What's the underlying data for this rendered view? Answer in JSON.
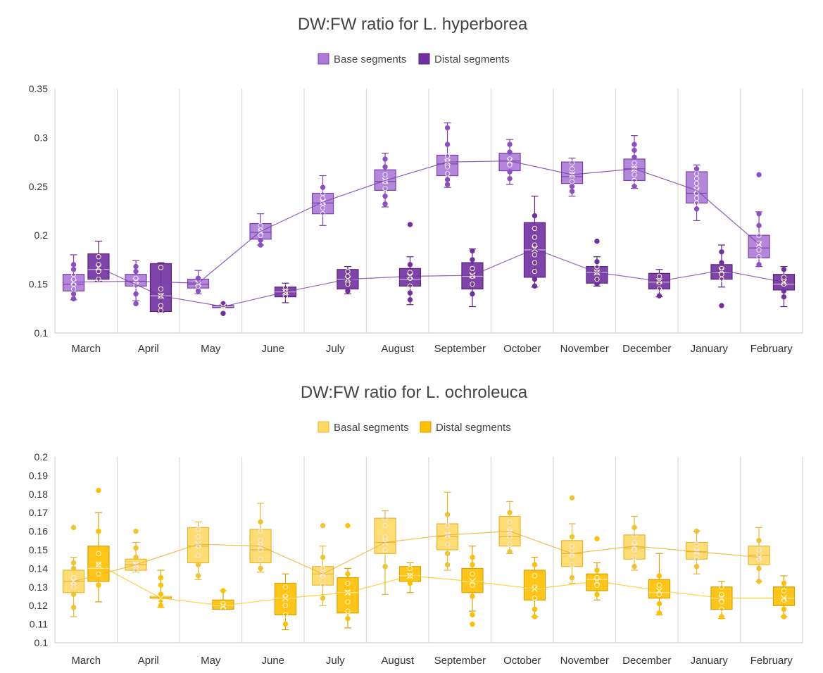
{
  "chart_data": [
    {
      "type": "boxplot",
      "title": "DW:FW ratio for L. hyperborea",
      "legend": "top-center",
      "categories": [
        "March",
        "April",
        "May",
        "June",
        "July",
        "August",
        "September",
        "October",
        "November",
        "December",
        "January",
        "February"
      ],
      "ylim": [
        0.1,
        0.35
      ],
      "yticks": [
        "0.1",
        "0.15",
        "0.2",
        "0.25",
        "0.3",
        "0.35"
      ],
      "yticks_values": [
        0.1,
        0.15,
        0.2,
        0.25,
        0.3,
        0.35
      ],
      "series": [
        {
          "name": "Base segments",
          "fill": "#ac7ad6",
          "stroke": "#7a3fb0",
          "marker": "#8c4fc2",
          "boxes": [
            {
              "min": 0.134,
              "q1": 0.143,
              "median": 0.15,
              "q3": 0.16,
              "max": 0.18,
              "mean": 0.152,
              "points": [
                0.135,
                0.14,
                0.145,
                0.15,
                0.155,
                0.16,
                0.165,
                0.17
              ]
            },
            {
              "min": 0.133,
              "q1": 0.148,
              "median": 0.153,
              "q3": 0.16,
              "max": 0.174,
              "mean": 0.153,
              "points": [
                0.13,
                0.14,
                0.148,
                0.152,
                0.156,
                0.163,
                0.168
              ]
            },
            {
              "min": 0.14,
              "q1": 0.146,
              "median": 0.15,
              "q3": 0.155,
              "max": 0.164,
              "mean": 0.151,
              "points": [
                0.143,
                0.148,
                0.152,
                0.156
              ]
            },
            {
              "min": 0.19,
              "q1": 0.196,
              "median": 0.203,
              "q3": 0.212,
              "max": 0.222,
              "mean": 0.204,
              "points": [
                0.19,
                0.195,
                0.2,
                0.205,
                0.21
              ]
            },
            {
              "min": 0.21,
              "q1": 0.222,
              "median": 0.233,
              "q3": 0.243,
              "max": 0.261,
              "mean": 0.234,
              "points": [
                0.222,
                0.228,
                0.233,
                0.238,
                0.243,
                0.249
              ]
            },
            {
              "min": 0.229,
              "q1": 0.246,
              "median": 0.255,
              "q3": 0.267,
              "max": 0.284,
              "mean": 0.256,
              "points": [
                0.232,
                0.24,
                0.248,
                0.255,
                0.262,
                0.27,
                0.278
              ]
            },
            {
              "min": 0.249,
              "q1": 0.261,
              "median": 0.273,
              "q3": 0.282,
              "max": 0.315,
              "mean": 0.275,
              "points": [
                0.252,
                0.257,
                0.263,
                0.27,
                0.276,
                0.281,
                0.293,
                0.31
              ]
            },
            {
              "min": 0.252,
              "q1": 0.266,
              "median": 0.276,
              "q3": 0.284,
              "max": 0.298,
              "mean": 0.276,
              "points": [
                0.258,
                0.265,
                0.272,
                0.278,
                0.285,
                0.293
              ]
            },
            {
              "min": 0.24,
              "q1": 0.253,
              "median": 0.26,
              "q3": 0.275,
              "max": 0.279,
              "mean": 0.262,
              "points": [
                0.245,
                0.25,
                0.255,
                0.262,
                0.268,
                0.274
              ]
            },
            {
              "min": 0.248,
              "q1": 0.256,
              "median": 0.268,
              "q3": 0.278,
              "max": 0.302,
              "mean": 0.268,
              "points": [
                0.25,
                0.256,
                0.262,
                0.268,
                0.274,
                0.28,
                0.287,
                0.293
              ]
            },
            {
              "min": 0.215,
              "q1": 0.233,
              "median": 0.243,
              "q3": 0.265,
              "max": 0.272,
              "mean": 0.246,
              "points": [
                0.227,
                0.233,
                0.238,
                0.243,
                0.248,
                0.253,
                0.258,
                0.263,
                0.268
              ]
            },
            {
              "min": 0.168,
              "q1": 0.177,
              "median": 0.187,
              "q3": 0.2,
              "max": 0.224,
              "mean": 0.191,
              "points": [
                0.17,
                0.178,
                0.185,
                0.192,
                0.2,
                0.21,
                0.222,
                0.262
              ]
            }
          ]
        },
        {
          "name": "Distal segments",
          "fill": "#7030a0",
          "stroke": "#5a2382",
          "marker": "#7030a0",
          "boxes": [
            {
              "min": 0.153,
              "q1": 0.155,
              "median": 0.165,
              "q3": 0.181,
              "max": 0.194,
              "mean": 0.167,
              "points": [
                0.155,
                0.163,
                0.17,
                0.178
              ]
            },
            {
              "min": 0.121,
              "q1": 0.122,
              "median": 0.138,
              "q3": 0.171,
              "max": 0.172,
              "mean": 0.138,
              "points": [
                0.123,
                0.128,
                0.138,
                0.145,
                0.167
              ]
            },
            {
              "min": 0.126,
              "q1": 0.126,
              "median": 0.127,
              "q3": 0.128,
              "max": 0.129,
              "mean": 0.127,
              "points": [
                0.12,
                0.127,
                0.13
              ]
            },
            {
              "min": 0.131,
              "q1": 0.137,
              "median": 0.142,
              "q3": 0.147,
              "max": 0.151,
              "mean": 0.142,
              "points": [
                0.137,
                0.142,
                0.147
              ]
            },
            {
              "min": 0.14,
              "q1": 0.145,
              "median": 0.155,
              "q3": 0.165,
              "max": 0.168,
              "mean": 0.155,
              "points": [
                0.143,
                0.15,
                0.158,
                0.163
              ]
            },
            {
              "min": 0.129,
              "q1": 0.148,
              "median": 0.155,
              "q3": 0.166,
              "max": 0.178,
              "mean": 0.158,
              "points": [
                0.134,
                0.141,
                0.148,
                0.156,
                0.162,
                0.17,
                0.211
              ]
            },
            {
              "min": 0.127,
              "q1": 0.145,
              "median": 0.158,
              "q3": 0.172,
              "max": 0.186,
              "mean": 0.159,
              "points": [
                0.14,
                0.15,
                0.158,
                0.166,
                0.175,
                0.184
              ]
            },
            {
              "min": 0.147,
              "q1": 0.157,
              "median": 0.185,
              "q3": 0.213,
              "max": 0.24,
              "mean": 0.186,
              "points": [
                0.148,
                0.155,
                0.163,
                0.172,
                0.18,
                0.19,
                0.198,
                0.207,
                0.22
              ]
            },
            {
              "min": 0.148,
              "q1": 0.151,
              "median": 0.162,
              "q3": 0.168,
              "max": 0.178,
              "mean": 0.162,
              "points": [
                0.15,
                0.155,
                0.162,
                0.168,
                0.173,
                0.194
              ]
            },
            {
              "min": 0.137,
              "q1": 0.145,
              "median": 0.152,
              "q3": 0.161,
              "max": 0.165,
              "mean": 0.153,
              "points": [
                0.138,
                0.145,
                0.152,
                0.158
              ]
            },
            {
              "min": 0.147,
              "q1": 0.155,
              "median": 0.162,
              "q3": 0.17,
              "max": 0.19,
              "mean": 0.164,
              "points": [
                0.128,
                0.155,
                0.16,
                0.166,
                0.172,
                0.183
              ]
            },
            {
              "min": 0.127,
              "q1": 0.144,
              "median": 0.15,
              "q3": 0.16,
              "max": 0.168,
              "mean": 0.152,
              "points": [
                0.137,
                0.143,
                0.15,
                0.157,
                0.165
              ]
            }
          ]
        }
      ]
    },
    {
      "type": "boxplot",
      "title": "DW:FW ratio for L. ochroleuca",
      "legend": "top-center",
      "categories": [
        "March",
        "April",
        "May",
        "June",
        "July",
        "August",
        "September",
        "October",
        "November",
        "December",
        "January",
        "February"
      ],
      "ylim": [
        0.1,
        0.2
      ],
      "yticks": [
        "0.1",
        "0.11",
        "0.12",
        "0.13",
        "0.14",
        "0.15",
        "0.16",
        "0.17",
        "0.18",
        "0.19",
        "0.2"
      ],
      "yticks_values": [
        0.1,
        0.11,
        0.12,
        0.13,
        0.14,
        0.15,
        0.16,
        0.17,
        0.18,
        0.19,
        0.2
      ],
      "series": [
        {
          "name": "Basal segments",
          "fill": "#ffd966",
          "stroke": "#e8b730",
          "marker": "#f2c330",
          "boxes": [
            {
              "min": 0.114,
              "q1": 0.127,
              "median": 0.133,
              "q3": 0.139,
              "max": 0.146,
              "mean": 0.133,
              "points": [
                0.119,
                0.126,
                0.13,
                0.135,
                0.14,
                0.143,
                0.162
              ]
            },
            {
              "min": 0.138,
              "q1": 0.139,
              "median": 0.142,
              "q3": 0.145,
              "max": 0.154,
              "mean": 0.142,
              "points": [
                0.139,
                0.142,
                0.146,
                0.151,
                0.16
              ]
            },
            {
              "min": 0.134,
              "q1": 0.143,
              "median": 0.152,
              "q3": 0.162,
              "max": 0.165,
              "mean": 0.153,
              "points": [
                0.136,
                0.142,
                0.147,
                0.152,
                0.157,
                0.161
              ]
            },
            {
              "min": 0.138,
              "q1": 0.143,
              "median": 0.15,
              "q3": 0.161,
              "max": 0.175,
              "mean": 0.152,
              "points": [
                0.14,
                0.145,
                0.15,
                0.155,
                0.16,
                0.165
              ]
            },
            {
              "min": 0.12,
              "q1": 0.131,
              "median": 0.137,
              "q3": 0.141,
              "max": 0.152,
              "mean": 0.137,
              "points": [
                0.124,
                0.131,
                0.136,
                0.14,
                0.146,
                0.163
              ]
            },
            {
              "min": 0.126,
              "q1": 0.148,
              "median": 0.154,
              "q3": 0.167,
              "max": 0.171,
              "mean": 0.154,
              "points": [
                0.141,
                0.15,
                0.157,
                0.163,
                0.167
              ]
            },
            {
              "min": 0.139,
              "q1": 0.15,
              "median": 0.157,
              "q3": 0.164,
              "max": 0.181,
              "mean": 0.158,
              "points": [
                0.142,
                0.148,
                0.153,
                0.158,
                0.163,
                0.169
              ]
            },
            {
              "min": 0.148,
              "q1": 0.152,
              "median": 0.157,
              "q3": 0.168,
              "max": 0.176,
              "mean": 0.16,
              "points": [
                0.149,
                0.153,
                0.157,
                0.161,
                0.165,
                0.17
              ]
            },
            {
              "min": 0.132,
              "q1": 0.141,
              "median": 0.148,
              "q3": 0.155,
              "max": 0.164,
              "mean": 0.148,
              "points": [
                0.135,
                0.142,
                0.147,
                0.152,
                0.157,
                0.178
              ]
            },
            {
              "min": 0.139,
              "q1": 0.145,
              "median": 0.151,
              "q3": 0.158,
              "max": 0.168,
              "mean": 0.152,
              "points": [
                0.141,
                0.146,
                0.15,
                0.154,
                0.158,
                0.162
              ]
            },
            {
              "min": 0.137,
              "q1": 0.145,
              "median": 0.149,
              "q3": 0.154,
              "max": 0.16,
              "mean": 0.149,
              "points": [
                0.141,
                0.145,
                0.149,
                0.153,
                0.16
              ]
            },
            {
              "min": 0.133,
              "q1": 0.142,
              "median": 0.147,
              "q3": 0.152,
              "max": 0.162,
              "mean": 0.146,
              "points": [
                0.133,
                0.14,
                0.145,
                0.15,
                0.155
              ]
            }
          ]
        },
        {
          "name": "Distal segments",
          "fill": "#ffc000",
          "stroke": "#d9a200",
          "marker": "#ffc000",
          "boxes": [
            {
              "min": 0.122,
              "q1": 0.133,
              "median": 0.14,
              "q3": 0.152,
              "max": 0.17,
              "mean": 0.142,
              "points": [
                0.131,
                0.137,
                0.142,
                0.148,
                0.16,
                0.182
              ]
            },
            {
              "min": 0.119,
              "q1": 0.124,
              "median": 0.125,
              "q3": 0.125,
              "max": 0.139,
              "mean": 0.124,
              "points": [
                0.12,
                0.123,
                0.126,
                0.131,
                0.135
              ]
            },
            {
              "min": 0.118,
              "q1": 0.118,
              "median": 0.12,
              "q3": 0.123,
              "max": 0.128,
              "mean": 0.12,
              "points": [
                0.118,
                0.121,
                0.128
              ]
            },
            {
              "min": 0.107,
              "q1": 0.115,
              "median": 0.124,
              "q3": 0.132,
              "max": 0.137,
              "mean": 0.124,
              "points": [
                0.11,
                0.115,
                0.12,
                0.125,
                0.13
              ]
            },
            {
              "min": 0.108,
              "q1": 0.116,
              "median": 0.127,
              "q3": 0.135,
              "max": 0.14,
              "mean": 0.127,
              "points": [
                0.113,
                0.117,
                0.122,
                0.127,
                0.132,
                0.137,
                0.163
              ]
            },
            {
              "min": 0.127,
              "q1": 0.133,
              "median": 0.136,
              "q3": 0.141,
              "max": 0.143,
              "mean": 0.136,
              "points": [
                0.132,
                0.136,
                0.14
              ]
            },
            {
              "min": 0.117,
              "q1": 0.127,
              "median": 0.133,
              "q3": 0.14,
              "max": 0.152,
              "mean": 0.133,
              "points": [
                0.11,
                0.115,
                0.125,
                0.131,
                0.137,
                0.142,
                0.146
              ]
            },
            {
              "min": 0.114,
              "q1": 0.123,
              "median": 0.129,
              "q3": 0.139,
              "max": 0.146,
              "mean": 0.129,
              "points": [
                0.114,
                0.118,
                0.124,
                0.13,
                0.136,
                0.142
              ]
            },
            {
              "min": 0.123,
              "q1": 0.128,
              "median": 0.134,
              "q3": 0.137,
              "max": 0.143,
              "mean": 0.133,
              "points": [
                0.126,
                0.131,
                0.135,
                0.139,
                0.156
              ]
            },
            {
              "min": 0.115,
              "q1": 0.124,
              "median": 0.127,
              "q3": 0.134,
              "max": 0.148,
              "mean": 0.128,
              "points": [
                0.116,
                0.121,
                0.126,
                0.131,
                0.136
              ]
            },
            {
              "min": 0.113,
              "q1": 0.118,
              "median": 0.124,
              "q3": 0.13,
              "max": 0.133,
              "mean": 0.124,
              "points": [
                0.114,
                0.118,
                0.122,
                0.126,
                0.13
              ]
            },
            {
              "min": 0.114,
              "q1": 0.12,
              "median": 0.124,
              "q3": 0.13,
              "max": 0.136,
              "mean": 0.124,
              "points": [
                0.114,
                0.118,
                0.123,
                0.128,
                0.132
              ]
            }
          ]
        }
      ]
    }
  ]
}
